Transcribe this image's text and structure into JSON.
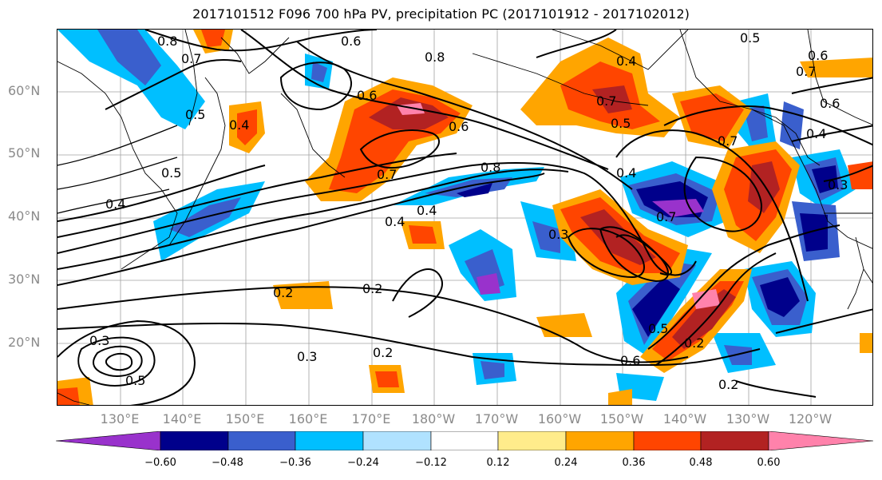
{
  "title": "2017101512 F096 700 hPa PV, precipitation PC (2017101912 - 2017102012)",
  "lat_labels": [
    "60°N",
    "50°N",
    "40°N",
    "30°N",
    "20°N"
  ],
  "lon_labels": [
    "130°E",
    "140°E",
    "150°E",
    "160°E",
    "170°E",
    "180°W",
    "170°W",
    "160°W",
    "150°W",
    "140°W",
    "130°W",
    "120°W"
  ],
  "colorbar": {
    "ticks": [
      "−0.60",
      "−0.48",
      "−0.36",
      "−0.24",
      "−0.12",
      "0.12",
      "0.24",
      "0.36",
      "0.48",
      "0.60"
    ],
    "colors": [
      "#9932cc",
      "#00008b",
      "#3a5fcd",
      "#00bfff",
      "#b0e2ff",
      "#ffffff",
      "#ffec8b",
      "#ffa500",
      "#ff4500",
      "#b22222",
      "#ff82ab"
    ]
  },
  "contour_labels": [
    "0.8",
    "0.6",
    "0.5",
    "0.7",
    "0.8",
    "0.6",
    "0.4",
    "0.6",
    "0.7",
    "0.6",
    "0.5",
    "0.7",
    "0.6",
    "0.4",
    "0.5",
    "0.4",
    "0.7",
    "0.7",
    "0.8",
    "0.4",
    "0.5",
    "0.4",
    "0.3",
    "0.7",
    "0.4",
    "0.4",
    "0.3",
    "0.2",
    "0.2",
    "0.3",
    "0.5",
    "0.2",
    "0.3",
    "0.2",
    "0.6",
    "0.5",
    "0.2"
  ]
}
